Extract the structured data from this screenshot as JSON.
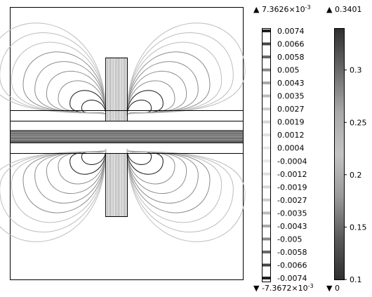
{
  "colors": {
    "background": "#ffffff",
    "frame": "#000000",
    "contour_light": "#bdbdbd",
    "contour_mid": "#8c8c8c",
    "contour_dark": "#2b2b2b"
  },
  "contour_legend": {
    "max_label": "▲ 7.3626×10",
    "max_exponent": "-3",
    "min_label": "▼ -7.3672×10",
    "min_exponent": "-3",
    "levels": [
      "0.0074",
      "0.0066",
      "0.0058",
      "0.005",
      "0.0043",
      "0.0035",
      "0.0027",
      "0.0019",
      "0.0012",
      "0.0004",
      "-0.0004",
      "-0.0012",
      "-0.0019",
      "-0.0027",
      "-0.0035",
      "-0.0043",
      "-0.005",
      "-0.0058",
      "-0.0066",
      "-0.0074"
    ],
    "swatch_grays": [
      "#202020",
      "#444444",
      "#666666",
      "#888888",
      "#a8a8a8",
      "#bcbcbc",
      "#cccccc",
      "#d6d6d6",
      "#dfdfdf",
      "#e8e8e8",
      "#e8e8e8",
      "#dfdfdf",
      "#d6d6d6",
      "#cccccc",
      "#bcbcbc",
      "#a8a8a8",
      "#888888",
      "#666666",
      "#444444",
      "#202020"
    ]
  },
  "surface_legend": {
    "max_label": "▲ 0.3401",
    "min_label": "▼ 0",
    "ticks": [
      "0.3",
      "0.25",
      "0.2",
      "0.15",
      "0.1"
    ],
    "tick_values": [
      0.3,
      0.25,
      0.2,
      0.15,
      0.1
    ],
    "range": [
      0.1,
      0.34
    ],
    "gradient_stops": [
      "#2f2f2f",
      "#6a6a6a",
      "#a9a9a9",
      "#c3c3c3",
      "#9a9a9a",
      "#5a5a5a",
      "#2f2f2f"
    ]
  }
}
